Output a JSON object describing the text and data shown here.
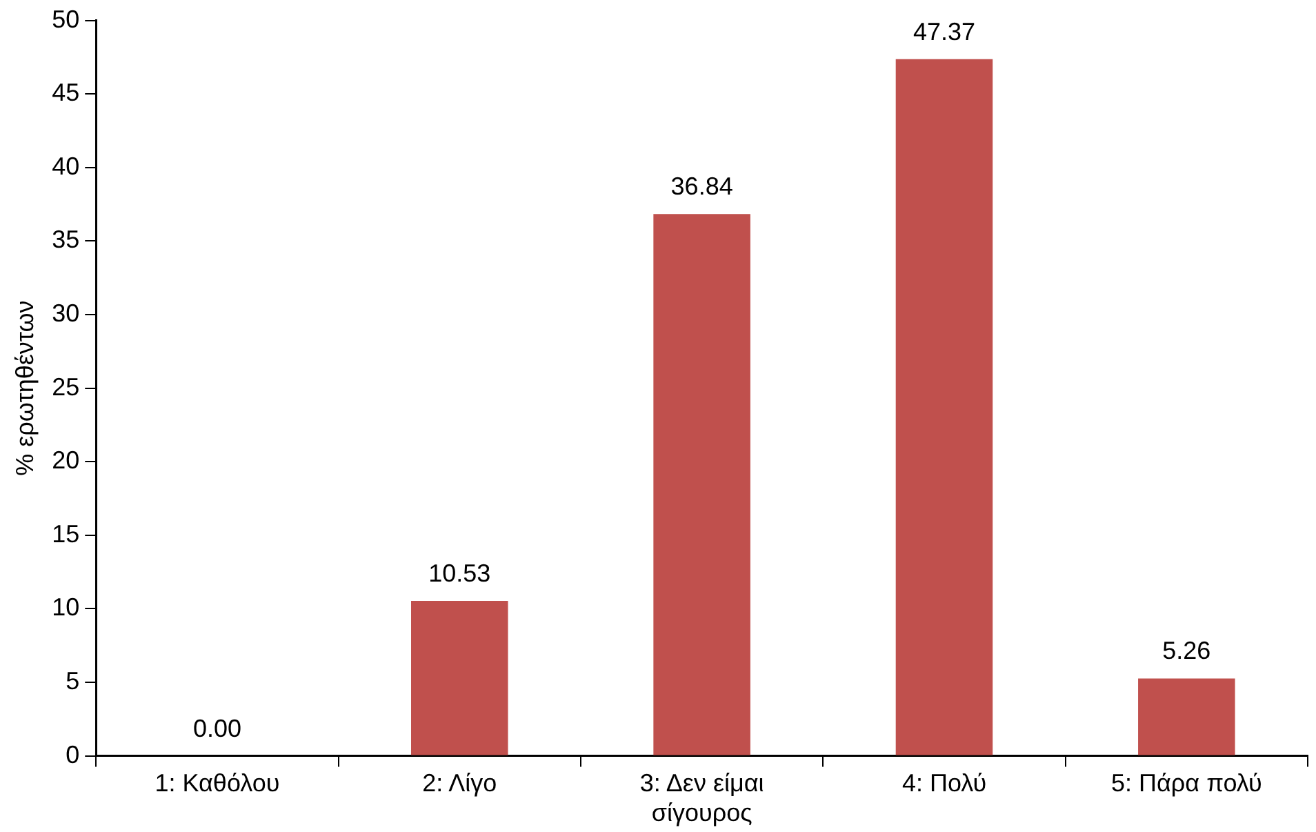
{
  "chart_data": {
    "type": "bar",
    "ylabel": "% ερωτηθέντων",
    "categories": [
      "1: Καθόλου",
      "2: Λίγο",
      "3: Δεν είμαι σίγουρος",
      "4: Πολύ",
      "5: Πάρα πολύ"
    ],
    "values": [
      0,
      10.53,
      36.84,
      47.37,
      5.26
    ],
    "value_labels": [
      "0.00",
      "10.53",
      "36.84",
      "47.37",
      "5.26"
    ],
    "color": "#c0504d",
    "ylim": [
      0,
      50
    ],
    "yticks": [
      0,
      5,
      10,
      15,
      20,
      25,
      30,
      35,
      40,
      45,
      50
    ],
    "grid": false,
    "legend": false
  }
}
